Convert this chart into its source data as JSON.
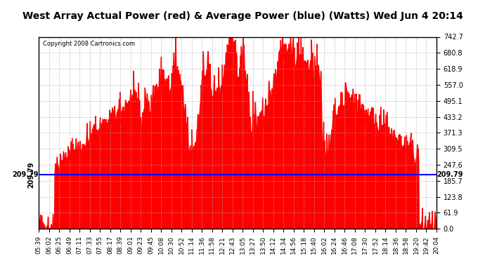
{
  "title": "West Array Actual Power (red) & Average Power (blue) (Watts) Wed Jun 4 20:14",
  "copyright": "Copyright 2008 Cartronics.com",
  "average_value": 209.79,
  "y_max": 742.7,
  "y_min": 0.0,
  "y_ticks": [
    0.0,
    61.9,
    123.8,
    185.7,
    247.6,
    309.5,
    371.3,
    433.2,
    495.1,
    557.0,
    618.9,
    680.8,
    742.7
  ],
  "x_labels": [
    "05:39",
    "06:02",
    "06:25",
    "06:49",
    "07:11",
    "07:33",
    "07:55",
    "08:17",
    "08:39",
    "09:01",
    "09:23",
    "09:45",
    "10:08",
    "10:30",
    "10:52",
    "11:14",
    "11:36",
    "11:58",
    "12:21",
    "12:43",
    "13:05",
    "13:27",
    "13:50",
    "14:12",
    "14:34",
    "14:56",
    "15:18",
    "15:40",
    "16:02",
    "16:24",
    "16:46",
    "17:08",
    "17:30",
    "17:52",
    "18:14",
    "18:36",
    "18:58",
    "19:20",
    "19:42",
    "20:04"
  ],
  "bg_color": "#ffffff",
  "plot_bg_color": "#ffffff",
  "grid_color": "#aaaaaa",
  "fill_color": "#ff0000",
  "line_color": "#0000ff",
  "border_color": "#000000",
  "title_bg": "#dddddd",
  "avg_label_color": "#000000"
}
